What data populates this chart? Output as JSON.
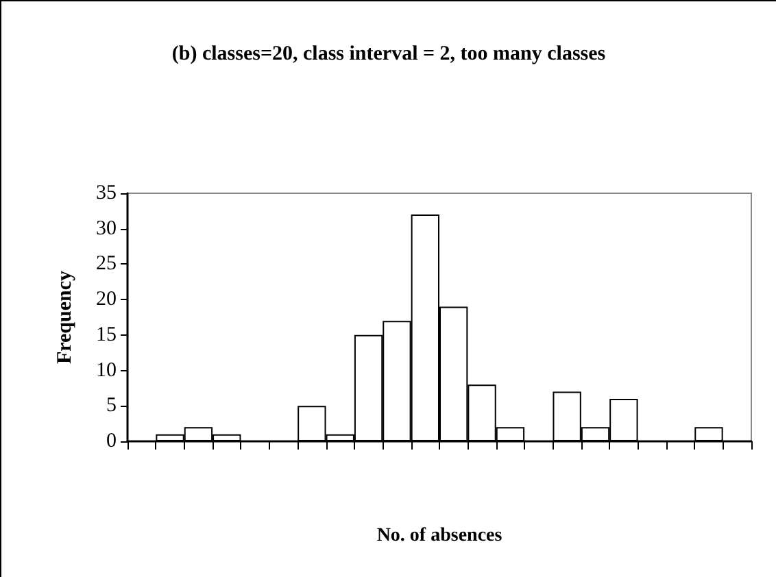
{
  "chart_data": {
    "type": "bar",
    "title": "(b) classes=20, class interval = 2, too many classes",
    "xlabel": "No. of absences",
    "ylabel": "Frequency",
    "categories": [
      null,
      null,
      null,
      null,
      null,
      null,
      null,
      null,
      null,
      null,
      null,
      null,
      null,
      null,
      null,
      null,
      null,
      null,
      null,
      null,
      null,
      null
    ],
    "values": [
      0,
      1,
      2,
      1,
      0,
      0,
      5,
      1,
      15,
      17,
      32,
      19,
      8,
      2,
      0,
      7,
      2,
      6,
      0,
      0,
      2,
      0
    ],
    "color": "#ffffff",
    "ylim": [
      0,
      35
    ],
    "yticks": [
      0,
      5,
      10,
      15,
      20,
      25,
      30,
      35
    ],
    "grid": false
  }
}
